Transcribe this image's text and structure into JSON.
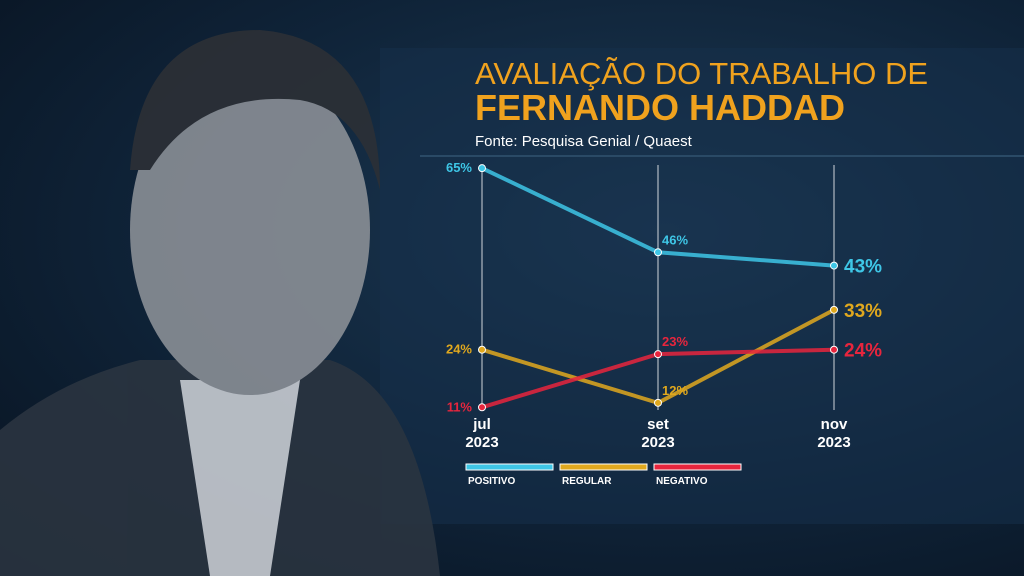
{
  "chart_data": {
    "type": "line",
    "title": "AVALIAÇÃO DO TRABALHO DE",
    "subtitle": "FERNANDO HADDAD",
    "source": "Fonte: Pesquisa Genial / Quaest",
    "categories": [
      "jul\n2023",
      "set\n2023",
      "nov\n2023"
    ],
    "ylim": [
      0,
      70
    ],
    "series": [
      {
        "name": "POSITIVO",
        "color": "#3ec6e6",
        "values": [
          65,
          46,
          43
        ],
        "value_labels": [
          "65%",
          "46%",
          "43%"
        ]
      },
      {
        "name": "REGULAR",
        "color": "#e0a81e",
        "values": [
          24,
          12,
          33
        ],
        "value_labels": [
          "24%",
          "12%",
          "33%"
        ]
      },
      {
        "name": "NEGATIVO",
        "color": "#e8253d",
        "values": [
          11,
          23,
          24
        ],
        "value_labels": [
          "11%",
          "23%",
          "24%"
        ]
      }
    ]
  }
}
